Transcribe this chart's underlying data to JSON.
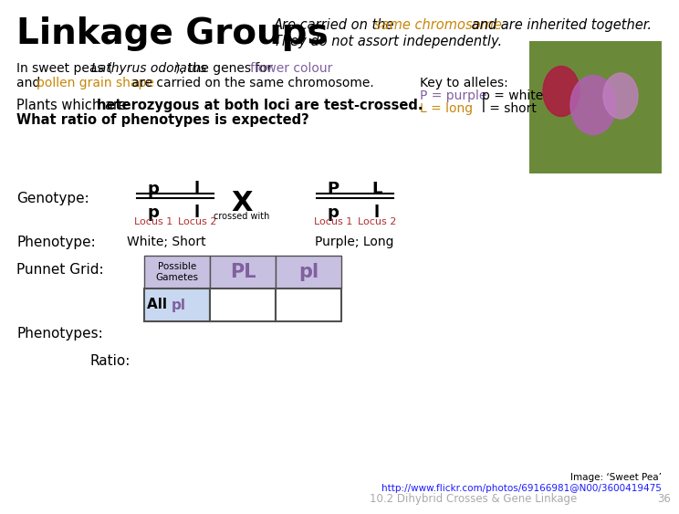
{
  "title": "Linkage Groups",
  "subtitle_normal1": "Are carried on the ",
  "subtitle_orange": "same chromosome",
  "subtitle_normal2": " and are inherited together.",
  "subtitle_line2": "They do not assort independently.",
  "bg_color": "#ffffff",
  "title_color": "#000000",
  "orange_color": "#c8860a",
  "purple_color": "#8060a0",
  "darkred_color": "#b03030",
  "body_text1a": "In sweet peas (",
  "body_text1b": "Lathyrus odoratus",
  "body_text1c": "), the genes for ",
  "body_text1d": "flower colour",
  "body_text2a": "and ",
  "body_text2b": "pollen grain shape",
  "body_text2c": " are carried on the same chromosome.",
  "key_label": "Key to alleles:",
  "key_P": "P = purple",
  "key_p": "  p = white",
  "key_L": "L = long",
  "key_l": "     l = short",
  "plants_text1": "Plants which are ",
  "plants_bold": "heterozygous at both loci are test-crossed.",
  "plants_text2": "What ratio of phenotypes is expected?",
  "genotype_label": "Genotype:",
  "phenotype_label": "Phenotype:",
  "punnet_label": "Punnet Grid:",
  "phenotypes_label": "Phenotypes:",
  "ratio_label": "Ratio:",
  "locus1_color": "#b03030",
  "locus2_color": "#b03030",
  "geno1_pheno": "White; Short",
  "geno2_pheno": "Purple; Long",
  "gametes_header": "Possible\nGametes",
  "gamete_PL": "PL",
  "gamete_pl": "pl",
  "table_header_color": "#c8c0e0",
  "table_side_color": "#c8d8f0",
  "footer_image": "Image: ‘Sweet Pea’",
  "footer_url": "http://www.flickr.com/photos/69166981@N00/3600419475",
  "footer_page": "10.2 Dihybrid Crosses & Gene Linkage",
  "footer_num": "36"
}
